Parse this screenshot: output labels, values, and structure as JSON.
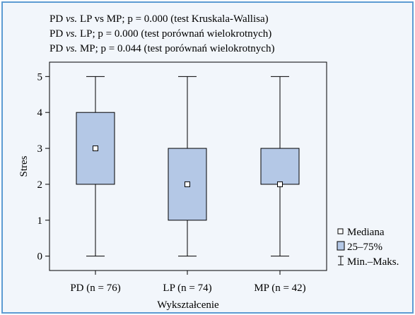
{
  "chart_data": {
    "type": "box",
    "title_lines": [
      "PD vs. LP vs MP; p = 0.000 (test Kruskala-Wallisa)",
      "PD vs. LP; p = 0.000 (test porównań wielokrotnych)",
      "PD vs. MP; p = 0.044 (test porównań wielokrotnych)"
    ],
    "title_rich": [
      [
        {
          "t": "PD ",
          "i": false
        },
        {
          "t": "vs.",
          "i": true
        },
        {
          "t": " LP vs MP; p = 0.000 (test Kruskala-Wallisa)",
          "i": false
        }
      ],
      [
        {
          "t": "PD ",
          "i": false
        },
        {
          "t": "vs.",
          "i": true
        },
        {
          "t": " LP; p = 0.000 (test porównań wielokrotnych)",
          "i": false
        }
      ],
      [
        {
          "t": "PD ",
          "i": false
        },
        {
          "t": "vs.",
          "i": true
        },
        {
          "t": " MP; p = 0.044 (test porównań wielokrotnych)",
          "i": false
        }
      ]
    ],
    "xlabel": "Wykształcenie",
    "ylabel": "Stres",
    "ylim": [
      -0.4,
      5.4
    ],
    "yticks": [
      0,
      1,
      2,
      3,
      4,
      5
    ],
    "grid": false,
    "legend_position": "right-bottom",
    "legend": {
      "median": "Mediana",
      "box": "25–75%",
      "whisker": "Min.–Maks."
    },
    "colors": {
      "box_fill": "#b4c8e6",
      "panel_bg": "#f2f6fb",
      "panel_border": "#5c9bd2"
    },
    "groups": [
      {
        "label": "PD (n = 76)",
        "min": 0,
        "q1": 2,
        "median": 3,
        "q3": 4,
        "max": 5
      },
      {
        "label": "LP (n = 74)",
        "min": 0,
        "q1": 1,
        "median": 2,
        "q3": 3,
        "max": 5
      },
      {
        "label": "MP (n = 42)",
        "min": 0,
        "q1": 2,
        "median": 2,
        "q3": 3,
        "max": 5
      }
    ]
  }
}
